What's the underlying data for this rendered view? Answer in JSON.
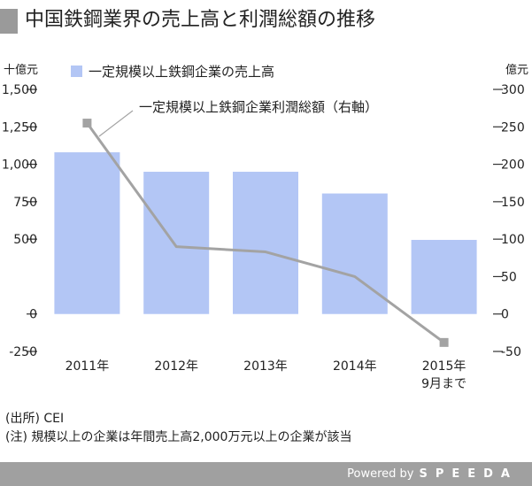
{
  "title": "中国鉄鋼業界の売上高と利潤総額の推移",
  "chart_data": {
    "type": "bar+line",
    "categories": [
      "2011年",
      "2012年",
      "2013年",
      "2014年",
      "2015年"
    ],
    "category_sublabels": [
      "",
      "",
      "",
      "",
      "9月まで"
    ],
    "series": [
      {
        "name": "一定規模以上鉄鋼企業の売上高",
        "type": "bar",
        "axis": "left",
        "values": [
          1080,
          950,
          950,
          805,
          495
        ]
      },
      {
        "name": "一定規模以上鉄鋼企業利潤総額（右軸）",
        "type": "line",
        "axis": "right",
        "values": [
          255,
          90,
          83,
          50,
          -38
        ]
      }
    ],
    "left_axis": {
      "unit": "十億元",
      "min": -250,
      "max": 1500,
      "ticks": [
        1500,
        1250,
        1000,
        750,
        500,
        0,
        -250
      ],
      "tick_labels": [
        "1,500",
        "1,250",
        "1,000",
        "750",
        "500",
        "0",
        "-250"
      ]
    },
    "right_axis": {
      "unit": "億元",
      "min": -50,
      "max": 300,
      "ticks": [
        300,
        250,
        200,
        150,
        100,
        50,
        0,
        -50
      ],
      "tick_labels": [
        "300",
        "250",
        "200",
        "150",
        "100",
        "50",
        "0",
        "-50"
      ]
    },
    "colors": {
      "bar": "#b3c6f5",
      "line": "#a3a3a3",
      "axis": "#333333"
    },
    "grid": false,
    "legend_placement": "top"
  },
  "notes": {
    "source": "(出所) CEI",
    "note": "(注) 規模以上の企業は年間売上高2,000万元以上の企業が該当"
  },
  "footer": {
    "powered": "Powered by",
    "brand": "SPEEDA"
  }
}
